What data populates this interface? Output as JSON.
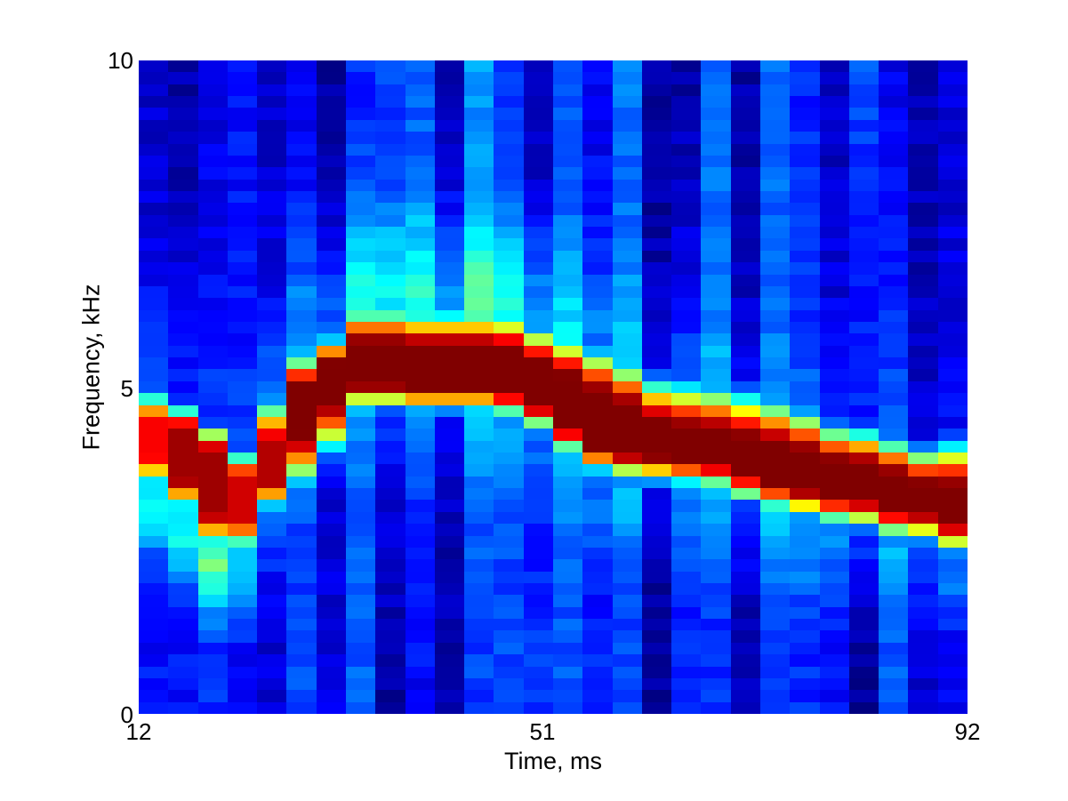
{
  "figure": {
    "background_color": "#ffffff",
    "text_color": "#000000"
  },
  "chart_data": {
    "type": "heatmap",
    "subtype": "spectrogram",
    "title": "",
    "xlabel": "Time, ms",
    "ylabel": "Frequency, kHz",
    "x_ticks": [
      "12",
      "51",
      "92"
    ],
    "y_ticks": [
      "0",
      "5",
      "10"
    ],
    "x_range_ms": [
      12,
      92
    ],
    "y_range_khz": [
      0,
      10
    ],
    "colormap": "jet",
    "grid": {
      "time_bins": 28,
      "freq_bins": 55
    },
    "ridge_track": {
      "times_ms": [
        13.4,
        16.3,
        19.1,
        22,
        24.9,
        27.7,
        30.6,
        33.4,
        36.3,
        39.1,
        42,
        44.9,
        47.7,
        50.6,
        53.4,
        56.3,
        59.1,
        62,
        64.9,
        67.7,
        70.6,
        73.4,
        76.3,
        79.1,
        82,
        84.9,
        87.7,
        90.6
      ],
      "core_lo_khz": [
        3.95,
        3.6,
        3.1,
        3.0,
        3.55,
        4.3,
        4.8,
        5.05,
        5.05,
        5.0,
        5.0,
        5.0,
        4.95,
        4.75,
        4.4,
        4.1,
        4.0,
        3.95,
        3.9,
        3.85,
        3.7,
        3.55,
        3.45,
        3.35,
        3.3,
        3.15,
        3.1,
        2.95
      ],
      "core_hi_khz": [
        4.45,
        4.35,
        4.0,
        3.6,
        4.1,
        5.0,
        5.35,
        5.65,
        5.65,
        5.6,
        5.6,
        5.6,
        5.55,
        5.35,
        5.15,
        4.9,
        4.7,
        4.45,
        4.35,
        4.3,
        4.2,
        4.1,
        4.0,
        3.85,
        3.8,
        3.65,
        3.5,
        3.45
      ],
      "peak_level": [
        0.88,
        0.97,
        0.97,
        0.92,
        0.95,
        1,
        1,
        1,
        1,
        1,
        1,
        1,
        1,
        1,
        1,
        1,
        1,
        1,
        1,
        1,
        1,
        1,
        1,
        1,
        1,
        1,
        1,
        1
      ],
      "sigma_above_khz": [
        0.3,
        0.22,
        0.25,
        0.25,
        0.45,
        0.3,
        0.25,
        0.35,
        0.35,
        0.35,
        0.35,
        0.35,
        0.35,
        0.35,
        0.38,
        0.42,
        0.42,
        0.42,
        0.45,
        0.45,
        0.45,
        0.45,
        0.4,
        0.35,
        0.35,
        0.35,
        0.35,
        0.45
      ],
      "sigma_below_khz": [
        0.3,
        0.3,
        0.35,
        0.3,
        0.25,
        0.5,
        0.5,
        0.22,
        0.22,
        0.22,
        0.22,
        0.22,
        0.25,
        0.25,
        0.25,
        0.25,
        0.25,
        0.25,
        0.25,
        0.25,
        0.28,
        0.28,
        0.28,
        0.28,
        0.28,
        0.28,
        0.28,
        0.3
      ],
      "halo_above_level": [
        0.08,
        0.05,
        0.05,
        0.05,
        0.15,
        0.12,
        0.15,
        0.22,
        0.23,
        0.23,
        0.22,
        0.21,
        0.2,
        0.18,
        0.14,
        0.12,
        0.1,
        0.1,
        0.1,
        0.1,
        0.08,
        0.06,
        0.05,
        0.04,
        0.04,
        0.04,
        0.03,
        0.03
      ],
      "halo_below_level": [
        0.22,
        0.26,
        0.32,
        0.2,
        0.1,
        0.05,
        0.05,
        0.05,
        0.05,
        0.05,
        0.05,
        0.06,
        0.06,
        0.08,
        0.08,
        0.08,
        0.08,
        0.08,
        0.08,
        0.1,
        0.1,
        0.12,
        0.12,
        0.12,
        0.1,
        0.1,
        0.12,
        0.14
      ]
    },
    "background_level": {
      "top": [
        0.07,
        0.04,
        0.1,
        0.14,
        0.08,
        0.12,
        0.02,
        0.16,
        0.19,
        0.22,
        0.06,
        0.28,
        0.18,
        0.04,
        0.21,
        0.11,
        0.24,
        0.03,
        0.04,
        0.24,
        0.04,
        0.24,
        0.16,
        0.06,
        0.2,
        0.11,
        0.04,
        0.08
      ],
      "bottom": [
        0.14,
        0.14,
        0.16,
        0.12,
        0.09,
        0.2,
        0.1,
        0.22,
        0.03,
        0.12,
        0.05,
        0.18,
        0.2,
        0.18,
        0.21,
        0.16,
        0.18,
        0.02,
        0.18,
        0.16,
        0.05,
        0.16,
        0.16,
        0.14,
        0.02,
        0.21,
        0.08,
        0.11
      ]
    },
    "noise_seed": 42,
    "noise_amplitude": 0.035
  }
}
